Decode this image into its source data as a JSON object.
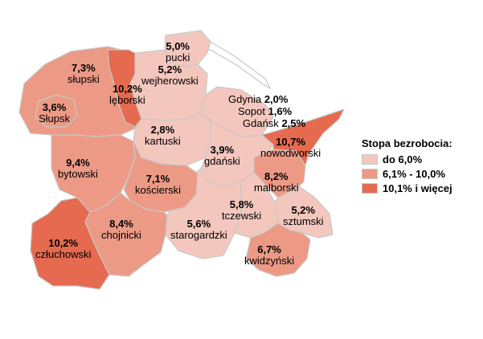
{
  "legend": {
    "title": "Stopa bezrobocia:",
    "items": [
      {
        "label": "do 6,0%",
        "color": "#f4c7be"
      },
      {
        "label": "6,1% - 10,0%",
        "color": "#ec9a85"
      },
      {
        "label": "10,1% i więcej",
        "color": "#e56a50"
      }
    ]
  },
  "regions": [
    {
      "id": "pucki",
      "name": "pucki",
      "value": "5,0%"
    },
    {
      "id": "slupski",
      "name": "słupski",
      "value": "7,3%"
    },
    {
      "id": "weiherowski",
      "name": "wejherowski",
      "value": "5,2%"
    },
    {
      "id": "leborski",
      "name": "lęborski",
      "value": "10,2%"
    },
    {
      "id": "slupsk",
      "name": "Słupsk",
      "value": "3,6%"
    },
    {
      "id": "kartuski",
      "name": "kartuski",
      "value": "2,8%"
    },
    {
      "id": "bytowski",
      "name": "bytowski",
      "value": "9,4%"
    },
    {
      "id": "gdanski",
      "name": "gdański",
      "value": "3,9%"
    },
    {
      "id": "nowodworski",
      "name": "nowodworski",
      "value": "10,7%"
    },
    {
      "id": "koscierski",
      "name": "kościerski",
      "value": "7,1%"
    },
    {
      "id": "malborski",
      "name": "malborski",
      "value": "8,2%"
    },
    {
      "id": "tczewski",
      "name": "tczewski",
      "value": "5,8%"
    },
    {
      "id": "sztumski",
      "name": "sztumski",
      "value": "5,2%"
    },
    {
      "id": "chojnicki",
      "name": "chojnicki",
      "value": "8,4%"
    },
    {
      "id": "starogardzki",
      "name": "starogardzki",
      "value": "5,6%"
    },
    {
      "id": "czluchowski",
      "name": "człuchowski",
      "value": "10,2%"
    },
    {
      "id": "kwidzynski",
      "name": "kwidzyński",
      "value": "6,7%"
    }
  ],
  "cities": [
    {
      "name": "Gdynia",
      "value": "2,0%"
    },
    {
      "name": "Sopot",
      "value": "1,6%"
    },
    {
      "name": "Gdańsk",
      "value": "2,5%"
    }
  ]
}
